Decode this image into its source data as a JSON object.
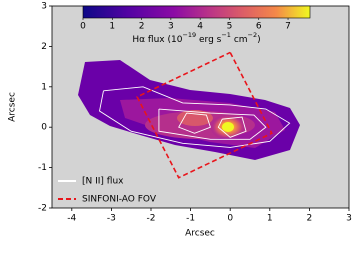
{
  "chart_data": {
    "type": "map",
    "xlabel": "Arcsec",
    "ylabel": "Arcsec",
    "xlim": [
      -4.5,
      3
    ],
    "ylim": [
      -2,
      3
    ],
    "xticks": [
      -4,
      -3,
      -2,
      -1,
      0,
      1,
      2,
      3
    ],
    "yticks": [
      -2,
      -1,
      0,
      1,
      2,
      3
    ],
    "background": "#d3d3d3",
    "colorbar": {
      "colormap": "plasma",
      "clim": [
        0,
        7.75
      ],
      "ticks": [
        0,
        1,
        2,
        3,
        4,
        5,
        6,
        7
      ],
      "label_parts": [
        {
          "text": "Hα flux (10"
        },
        {
          "text": "−19",
          "sup": true
        },
        {
          "text": " erg s"
        },
        {
          "text": "−1",
          "sup": true
        },
        {
          "text": " cm"
        },
        {
          "text": "−2",
          "sup": true
        },
        {
          "text": ")"
        }
      ]
    },
    "contours": {
      "name": "[N II] flux",
      "color": "#ffffff",
      "levels": [
        {
          "x": [
            -3.2,
            -2.2,
            -1.2,
            0,
            0.9,
            1.5,
            1.0,
            0,
            -1.2,
            -2.5,
            -3.3,
            -3.2
          ],
          "y": [
            0.9,
            1.0,
            0.6,
            0.55,
            0.45,
            0.1,
            -0.35,
            -0.5,
            -0.4,
            -0.1,
            0.4,
            0.9
          ]
        },
        {
          "x": [
            -1.8,
            -0.5,
            0.6,
            0.9,
            0.5,
            -0.5,
            -1.8,
            -1.8
          ],
          "y": [
            0.45,
            0.35,
            0.3,
            0,
            -0.3,
            -0.3,
            -0.1,
            0.45
          ]
        },
        {
          "x": [
            -1.1,
            -0.6,
            -0.5,
            -0.9,
            -1.3,
            -1.1
          ],
          "y": [
            0.35,
            0.3,
            0,
            -0.15,
            0,
            0.35
          ]
        },
        {
          "x": [
            -0.2,
            0.3,
            0.4,
            0,
            -0.3,
            -0.2
          ],
          "y": [
            0.2,
            0.25,
            -0.1,
            -0.25,
            0,
            0.2
          ]
        }
      ]
    },
    "fov": {
      "name": "SINFONI-AO FOV",
      "color": "#e8151b",
      "x": [
        0,
        1.05,
        -1.3,
        -2.35,
        0
      ],
      "y": [
        1.85,
        -0.15,
        -1.25,
        0.75,
        1.85
      ]
    },
    "legend": "lower left"
  }
}
